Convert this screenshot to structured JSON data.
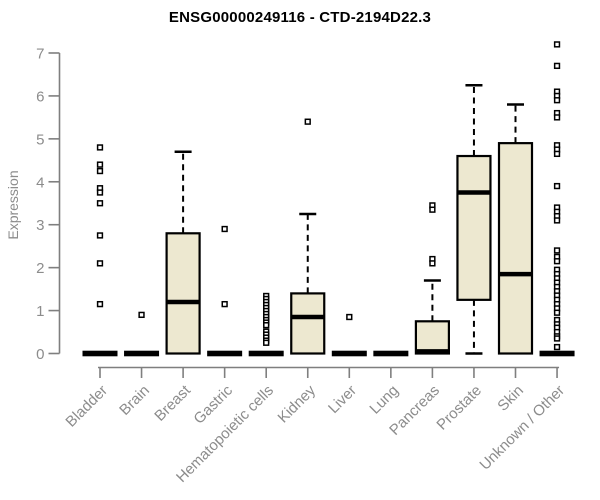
{
  "figure": {
    "title": "ENSG00000249116 - CTD-2194D22.3",
    "ylabel": "Expression"
  },
  "colors": {
    "box_fill": "#ede8d0",
    "box_stroke": "#000000",
    "median_color": "#000000",
    "outlier_fill": "#ffffff",
    "axis_color": "#7f7f7f",
    "tick_label_color": "#8c8c8c",
    "title_color": "#000000",
    "background": "#ffffff"
  },
  "chart_data": {
    "type": "boxplot",
    "title": "ENSG00000249116 - CTD-2194D22.3",
    "xlabel": "",
    "ylabel": "Expression",
    "ylim": [
      0,
      7
    ],
    "yticks": [
      0,
      1,
      2,
      3,
      4,
      5,
      6,
      7
    ],
    "grid": false,
    "legend": false,
    "categories": [
      "Bladder",
      "Brain",
      "Breast",
      "Gastric",
      "Hematopoietic cells",
      "Kidney",
      "Liver",
      "Lung",
      "Pancreas",
      "Prostate",
      "Skin",
      "Unknown / Other"
    ],
    "series": [
      {
        "name": "Bladder",
        "q1": 0,
        "median": 0,
        "q3": 0,
        "whisker_low": 0,
        "whisker_high": 0,
        "outliers": [
          4.8,
          4.4,
          4.25,
          3.85,
          3.75,
          3.5,
          2.75,
          2.1,
          1.15
        ]
      },
      {
        "name": "Brain",
        "q1": 0,
        "median": 0,
        "q3": 0,
        "whisker_low": 0,
        "whisker_high": 0,
        "outliers": [
          0.9
        ]
      },
      {
        "name": "Breast",
        "q1": 0,
        "median": 1.2,
        "q3": 2.8,
        "whisker_low": 0,
        "whisker_high": 4.7,
        "outliers": []
      },
      {
        "name": "Gastric",
        "q1": 0,
        "median": 0,
        "q3": 0,
        "whisker_low": 0,
        "whisker_high": 0,
        "outliers": [
          2.9,
          1.15
        ]
      },
      {
        "name": "Hematopoietic cells",
        "q1": 0,
        "median": 0,
        "q3": 0,
        "whisker_low": 0,
        "whisker_high": 0,
        "outliers": [
          1.34,
          1.27,
          1.2,
          1.13,
          1.06,
          0.99,
          0.92,
          0.85,
          0.78,
          0.72,
          0.66,
          0.51,
          0.44,
          0.37,
          0.3,
          0.25
        ]
      },
      {
        "name": "Kidney",
        "q1": 0,
        "median": 0.85,
        "q3": 1.4,
        "whisker_low": 0,
        "whisker_high": 3.25,
        "outliers": [
          5.4
        ]
      },
      {
        "name": "Liver",
        "q1": 0,
        "median": 0,
        "q3": 0,
        "whisker_low": 0,
        "whisker_high": 0,
        "outliers": [
          0.85
        ]
      },
      {
        "name": "Lung",
        "q1": 0,
        "median": 0,
        "q3": 0,
        "whisker_low": 0,
        "whisker_high": 0,
        "outliers": []
      },
      {
        "name": "Pancreas",
        "q1": 0,
        "median": 0.05,
        "q3": 0.75,
        "whisker_low": 0,
        "whisker_high": 1.7,
        "outliers": [
          3.45,
          3.35,
          2.2,
          2.1
        ]
      },
      {
        "name": "Prostate",
        "q1": 1.25,
        "median": 3.75,
        "q3": 4.6,
        "whisker_low": 0,
        "whisker_high": 6.25,
        "outliers": []
      },
      {
        "name": "Skin",
        "q1": 0,
        "median": 1.85,
        "q3": 4.9,
        "whisker_low": 0,
        "whisker_high": 5.8,
        "outliers": []
      },
      {
        "name": "Unknown / Other",
        "q1": 0,
        "median": 0,
        "q3": 0,
        "whisker_low": 0,
        "whisker_high": 0,
        "outliers": [
          7.2,
          6.7,
          6.1,
          6.0,
          5.9,
          5.6,
          5.5,
          4.85,
          4.75,
          4.65,
          3.9,
          3.4,
          3.3,
          3.2,
          3.1,
          2.4,
          2.25,
          2.15,
          1.95,
          1.85,
          1.75,
          1.65,
          1.55,
          1.45,
          1.35,
          1.25,
          1.15,
          1.05,
          0.95,
          0.78,
          0.68,
          0.6,
          0.5,
          0.4,
          0.35,
          0.15
        ]
      }
    ]
  }
}
